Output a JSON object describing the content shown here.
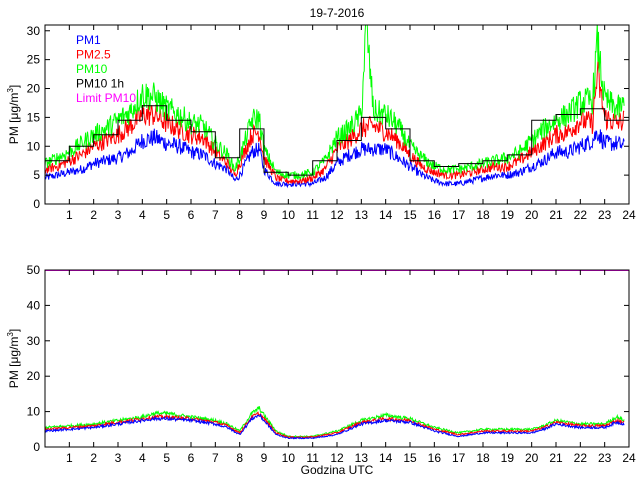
{
  "chart_data": [
    {
      "type": "line",
      "title": "19-7-2016",
      "ylabel": "PM [μg/m³]",
      "ylabel_parts": {
        "main": "PM [μg/m",
        "sup": "3",
        "close": "]"
      },
      "xlabel": "",
      "xlim": [
        0,
        24
      ],
      "ylim": [
        0,
        31
      ],
      "yticks": [
        0,
        5,
        10,
        15,
        20,
        25,
        30
      ],
      "xticks": [
        1,
        2,
        3,
        4,
        5,
        6,
        7,
        8,
        9,
        10,
        11,
        12,
        13,
        14,
        15,
        16,
        17,
        18,
        19,
        20,
        21,
        22,
        23,
        24
      ],
      "legend": {
        "placement": "top-left",
        "entries": [
          {
            "label": "PM1",
            "color": "#0000ff"
          },
          {
            "label": "PM2.5",
            "color": "#ff0000"
          },
          {
            "label": "PM10",
            "color": "#00ff00"
          },
          {
            "label": "PM10 1h",
            "color": "#000000"
          },
          {
            "label": "Limit PM10",
            "color": "#ff00ff"
          }
        ]
      },
      "series": [
        {
          "name": "PM1",
          "color": "#0000ff",
          "x": [
            0,
            0.5,
            1,
            1.5,
            2,
            2.5,
            3,
            3.5,
            4,
            4.5,
            5,
            5.5,
            6,
            6.5,
            7,
            7.5,
            7.8,
            8,
            8.5,
            8.8,
            9,
            9.5,
            10,
            10.5,
            11,
            11.5,
            12,
            12.5,
            13,
            13.5,
            14,
            14.5,
            15,
            15.5,
            16,
            16.5,
            17,
            17.5,
            18,
            18.5,
            19,
            19.5,
            20,
            20.5,
            21,
            21.5,
            22,
            22.5,
            22.7,
            23,
            23.5,
            23.8
          ],
          "values": [
            4.5,
            5,
            5.5,
            6,
            7,
            7.5,
            8,
            9,
            11,
            11.5,
            10.5,
            10,
            9,
            8.5,
            7,
            6,
            4,
            5,
            9,
            9.5,
            6,
            3.5,
            3.5,
            3.5,
            3.5,
            4.5,
            7,
            8.5,
            9.5,
            9.5,
            9.5,
            8,
            6.5,
            5,
            4,
            3.5,
            3.5,
            4,
            4.5,
            5,
            5,
            5.5,
            6.5,
            7.5,
            9,
            9,
            10,
            11,
            12.5,
            10.5,
            10.5,
            10
          ]
        },
        {
          "name": "PM2.5",
          "color": "#ff0000",
          "x": [
            0,
            0.5,
            1,
            1.5,
            2,
            2.5,
            3,
            3.5,
            4,
            4.5,
            5,
            5.5,
            6,
            6.5,
            7,
            7.5,
            7.8,
            8,
            8.5,
            8.8,
            9,
            9.5,
            10,
            10.5,
            11,
            11.5,
            12,
            12.5,
            13,
            13.5,
            14,
            14.5,
            15,
            15.5,
            16,
            16.5,
            17,
            17.5,
            18,
            18.5,
            19,
            19.5,
            20,
            20.5,
            21,
            21.5,
            22,
            22.5,
            22.7,
            23,
            23.5,
            23.8
          ],
          "values": [
            6,
            6.5,
            7.5,
            8.5,
            10,
            11,
            12,
            13.5,
            15.5,
            15.5,
            14,
            13,
            12,
            11.5,
            9,
            7,
            5,
            7,
            12,
            12.5,
            8,
            4.5,
            4,
            4,
            4.5,
            6,
            9.5,
            11,
            13,
            13.5,
            12.5,
            11,
            8.5,
            6.5,
            5.5,
            5,
            5,
            5.5,
            6,
            6.5,
            6.5,
            7.5,
            9,
            10.5,
            12,
            12.5,
            14.5,
            14,
            22.5,
            15,
            14,
            14.5
          ]
        },
        {
          "name": "PM10",
          "color": "#00ff00",
          "x": [
            0,
            0.5,
            1,
            1.5,
            2,
            2.5,
            3,
            3.5,
            4,
            4.5,
            5,
            5.5,
            6,
            6.5,
            7,
            7.5,
            7.8,
            8,
            8.5,
            8.8,
            9,
            9.5,
            10,
            10.5,
            11,
            11.5,
            12,
            12.5,
            13,
            13.2,
            13.5,
            14,
            14.5,
            15,
            15.5,
            16,
            16.5,
            17,
            17.5,
            18,
            18.5,
            19,
            19.5,
            20,
            20.5,
            21,
            21.5,
            22,
            22.5,
            22.7,
            23,
            23.5,
            23.8
          ],
          "values": [
            7,
            8,
            9,
            10.5,
            12,
            13,
            14.5,
            16,
            19,
            18.5,
            16.5,
            15.5,
            14,
            13.5,
            10.5,
            8.5,
            6,
            8,
            14.5,
            15,
            9.5,
            5.5,
            5,
            5,
            5.5,
            7.5,
            11.5,
            13,
            15.5,
            31,
            16,
            15.5,
            13.5,
            10,
            8,
            6.5,
            6,
            6,
            6.5,
            7,
            7.5,
            8,
            9,
            11,
            13,
            14.5,
            15.5,
            17.5,
            18,
            28,
            18,
            16.5,
            17
          ]
        },
        {
          "name": "PM10 1h",
          "color": "#000000",
          "kind": "step",
          "x": [
            0,
            1,
            2,
            3,
            4,
            5,
            6,
            7,
            8,
            9,
            10,
            11,
            12,
            13,
            14,
            15,
            16,
            17,
            18,
            19,
            20,
            21,
            22,
            23
          ],
          "values": [
            7.5,
            10,
            12,
            14.5,
            17,
            14.5,
            12.5,
            8,
            13,
            5.5,
            5,
            7.5,
            11,
            15,
            13,
            7.5,
            6.5,
            7,
            7.5,
            8.5,
            14.5,
            15.5,
            16.5,
            14.5
          ]
        }
      ]
    },
    {
      "type": "line",
      "title": "",
      "ylabel": "PM [μg/m³]",
      "ylabel_parts": {
        "main": "PM [μg/m",
        "sup": "3",
        "close": "]"
      },
      "xlabel": "Godzina UTC",
      "xlim": [
        0,
        24
      ],
      "ylim": [
        0,
        50
      ],
      "yticks": [
        0,
        10,
        20,
        30,
        40,
        50
      ],
      "xticks": [
        1,
        2,
        3,
        4,
        5,
        6,
        7,
        8,
        9,
        10,
        11,
        12,
        13,
        14,
        15,
        16,
        17,
        18,
        19,
        20,
        21,
        22,
        23,
        24
      ],
      "series": [
        {
          "name": "Limit PM10",
          "color": "#ff00ff",
          "x": [
            0,
            24
          ],
          "values": [
            50,
            50
          ]
        },
        {
          "name": "PM10",
          "color": "#00ff00",
          "x": [
            0,
            1,
            2,
            3,
            4,
            4.5,
            5,
            6,
            7,
            7.5,
            8,
            8.5,
            8.8,
            9,
            9.5,
            10,
            11,
            12,
            13,
            14,
            15,
            16,
            17,
            18,
            19,
            20,
            20.5,
            21,
            22,
            23,
            23.5,
            23.8
          ],
          "values": [
            5.5,
            6,
            6.5,
            7.5,
            8.5,
            9.5,
            9.5,
            8.5,
            7.5,
            6.5,
            4.5,
            9.5,
            11,
            9,
            4.5,
            3,
            3,
            4.5,
            7.5,
            9,
            8,
            5.5,
            4,
            5,
            5,
            5,
            6,
            7.5,
            6.5,
            6.5,
            8.5,
            7.5
          ]
        },
        {
          "name": "PM2.5",
          "color": "#ff0000",
          "x": [
            0,
            1,
            2,
            3,
            4,
            4.5,
            5,
            6,
            7,
            7.5,
            8,
            8.5,
            8.8,
            9,
            9.5,
            10,
            11,
            12,
            13,
            14,
            15,
            16,
            17,
            18,
            19,
            20,
            20.5,
            21,
            22,
            23,
            23.5,
            23.8
          ],
          "values": [
            5,
            5.5,
            6,
            7,
            8,
            8.5,
            8.5,
            8,
            7,
            6,
            4,
            8.5,
            9.5,
            8,
            4,
            2.8,
            2.8,
            4,
            7,
            8,
            7.5,
            5,
            3.5,
            4.5,
            4.5,
            4.5,
            5.5,
            7,
            6,
            6,
            7.5,
            7
          ]
        },
        {
          "name": "PM1",
          "color": "#0000ff",
          "x": [
            0,
            1,
            2,
            3,
            4,
            4.5,
            5,
            6,
            7,
            7.5,
            8,
            8.5,
            8.8,
            9,
            9.5,
            10,
            11,
            12,
            13,
            14,
            15,
            16,
            17,
            18,
            19,
            20,
            20.5,
            21,
            22,
            23,
            23.5,
            23.8
          ],
          "values": [
            4.5,
            5,
            5.5,
            6.5,
            7.5,
            8,
            8,
            7.5,
            6.5,
            5.5,
            3.5,
            8,
            9,
            7.5,
            3.5,
            2.5,
            2.5,
            3.5,
            6.5,
            7.5,
            7,
            4.5,
            3,
            4,
            4,
            4,
            5,
            6.5,
            5.5,
            5.5,
            7,
            6.5
          ]
        }
      ]
    }
  ]
}
